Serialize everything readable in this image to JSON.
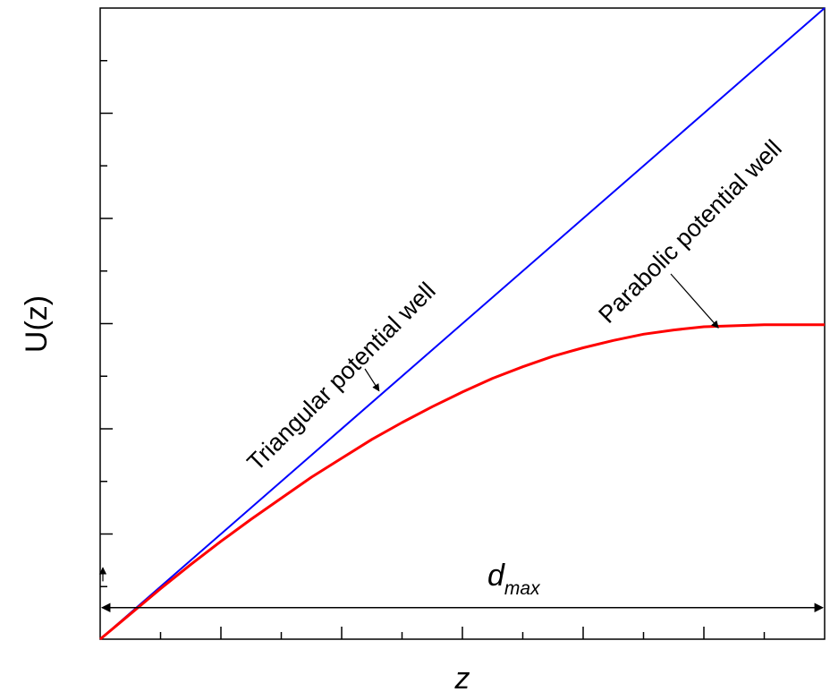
{
  "chart_data": {
    "type": "line",
    "xlabel": "z",
    "ylabel": "U(z)",
    "xlim": [
      0,
      12
    ],
    "ylim": [
      0,
      6
    ],
    "grid": false,
    "legend": "none",
    "series": [
      {
        "color": "#0000ff",
        "x": [
          0,
          12
        ],
        "y": [
          0,
          6
        ]
      },
      {
        "color": "#ff0000",
        "x": [
          0,
          0.5,
          1,
          1.5,
          2,
          2.5,
          3,
          3.5,
          4,
          4.5,
          5,
          5.5,
          6,
          6.5,
          7,
          7.5,
          8,
          8.5,
          9,
          9.5,
          10,
          10.5,
          11,
          11.5,
          12
        ],
        "y": [
          0,
          0.24,
          0.48,
          0.71,
          0.93,
          1.14,
          1.34,
          1.54,
          1.72,
          1.9,
          2.06,
          2.21,
          2.35,
          2.48,
          2.59,
          2.69,
          2.77,
          2.84,
          2.9,
          2.94,
          2.97,
          2.98,
          2.99,
          2.99,
          2.99
        ]
      }
    ],
    "annotations": [
      {
        "text": "Triangular potential well",
        "arrow_to": [
          4.62,
          2.36
        ]
      },
      {
        "text": "Parabolic potential well",
        "arrow_to": [
          10.24,
          2.96
        ]
      }
    ],
    "dimension_marker": {
      "label": "d",
      "subscript": "max",
      "from_x": 0,
      "to_x": 12,
      "at_y": 0.3
    },
    "x_major_ticks": [
      1,
      2,
      3,
      4,
      5,
      6,
      7,
      8,
      9,
      10,
      11
    ],
    "y_major_ticks": [
      0.5,
      1,
      1.5,
      2,
      2.5,
      3,
      3.5,
      4,
      4.5,
      5,
      5.5
    ]
  }
}
